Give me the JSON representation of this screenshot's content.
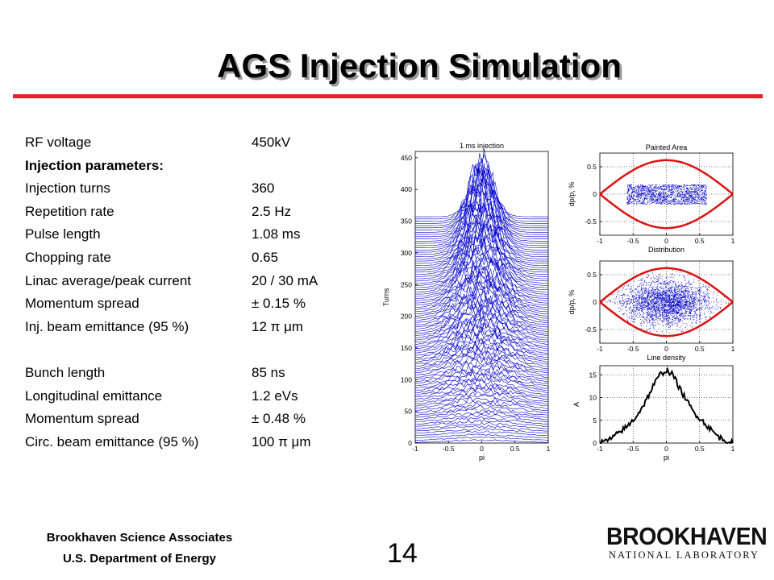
{
  "slide": {
    "title": "AGS Injection Simulation",
    "page_number": "14",
    "footer_line1": "Brookhaven Science Associates",
    "footer_line2": "U.S. Department of Energy",
    "logo_word": "BROOKHAVEN",
    "logo_sub": "NATIONAL LABORATORY",
    "colors": {
      "accent_rule": "#e8202a",
      "trace_blue": "#0000cc",
      "separatrix_red": "#dd1111"
    }
  },
  "params": [
    {
      "label": "RF voltage",
      "value": "450kV"
    },
    {
      "label": "Injection parameters:",
      "value": "",
      "bold": true
    },
    {
      "label": "Injection turns",
      "value": "360"
    },
    {
      "label": "Repetition rate",
      "value": "2.5 Hz"
    },
    {
      "label": "Pulse length",
      "value": "1.08 ms"
    },
    {
      "label": "Chopping rate",
      "value": "0.65"
    },
    {
      "label": "Linac average/peak current",
      "value": "20 / 30 mA"
    },
    {
      "label": "Momentum spread",
      "value": "± 0.15 %"
    },
    {
      "label": "Inj. beam emittance (95 %)",
      "value": "12  π  μm"
    }
  ],
  "params2": [
    {
      "label": "Bunch length",
      "value": "85 ns"
    },
    {
      "label": "Longitudinal emittance",
      "value": "1.2 eVs"
    },
    {
      "label": "Momentum spread",
      "value": "± 0.48 %"
    },
    {
      "label": "Circ. beam emittance (95 %)",
      "value": "100  π  μm"
    }
  ],
  "chart_data": [
    {
      "type": "line",
      "title": "1 ms injection",
      "xlabel": "pi",
      "ylabel": "Turns",
      "xlim": [
        -1,
        1
      ],
      "ylim": [
        0,
        460
      ],
      "xticks": [
        "-1",
        "-0.5",
        "0",
        "0.5",
        "1"
      ],
      "yticks": [
        "0",
        "50",
        "100",
        "150",
        "200",
        "250",
        "300",
        "350",
        "400",
        "450"
      ],
      "description_values": {
        "injection_end_turn": 360,
        "peak_turn": 455
      }
    },
    {
      "type": "scatter",
      "title": "Painted Area",
      "xlabel": "Distribution",
      "ylabel": "dp/p, %",
      "xlim": [
        -1,
        1
      ],
      "ylim": [
        -0.75,
        0.75
      ],
      "xticks": [
        "-1",
        "-0.5",
        "0",
        "0.5",
        "1"
      ],
      "yticks": [
        "0.5",
        "0",
        "-0.5"
      ],
      "painted_region": {
        "x": [
          -0.6,
          0.6
        ],
        "y": [
          -0.18,
          0.18
        ]
      },
      "separatrix_half_height": 0.62
    },
    {
      "type": "scatter",
      "title": "",
      "xlabel": "Line density",
      "ylabel": "dp/p, %",
      "xlim": [
        -1,
        1
      ],
      "ylim": [
        -0.75,
        0.75
      ],
      "xticks": [
        "-1",
        "-0.5",
        "0",
        "0.5",
        "1"
      ],
      "yticks": [
        "0.5",
        "0",
        "-0.5"
      ],
      "separatrix_half_height": 0.62
    },
    {
      "type": "line",
      "title": "",
      "xlabel": "pi",
      "ylabel": "A",
      "xlim": [
        -1,
        1
      ],
      "ylim": [
        0,
        17
      ],
      "xticks": [
        "-1",
        "-0.5",
        "0",
        "0.5",
        "1"
      ],
      "yticks": [
        "0",
        "5",
        "10",
        "15"
      ],
      "x": [
        -1,
        -0.9,
        -0.8,
        -0.7,
        -0.6,
        -0.5,
        -0.4,
        -0.3,
        -0.2,
        -0.1,
        0,
        0.1,
        0.2,
        0.3,
        0.4,
        0.5,
        0.6,
        0.7,
        0.8,
        0.9,
        1
      ],
      "values": [
        0,
        0.5,
        1.2,
        2.5,
        3.5,
        5,
        7,
        9.5,
        12.5,
        15,
        16,
        15,
        12,
        9.5,
        7,
        5.5,
        4,
        2.5,
        1.2,
        0.5,
        0
      ]
    }
  ]
}
